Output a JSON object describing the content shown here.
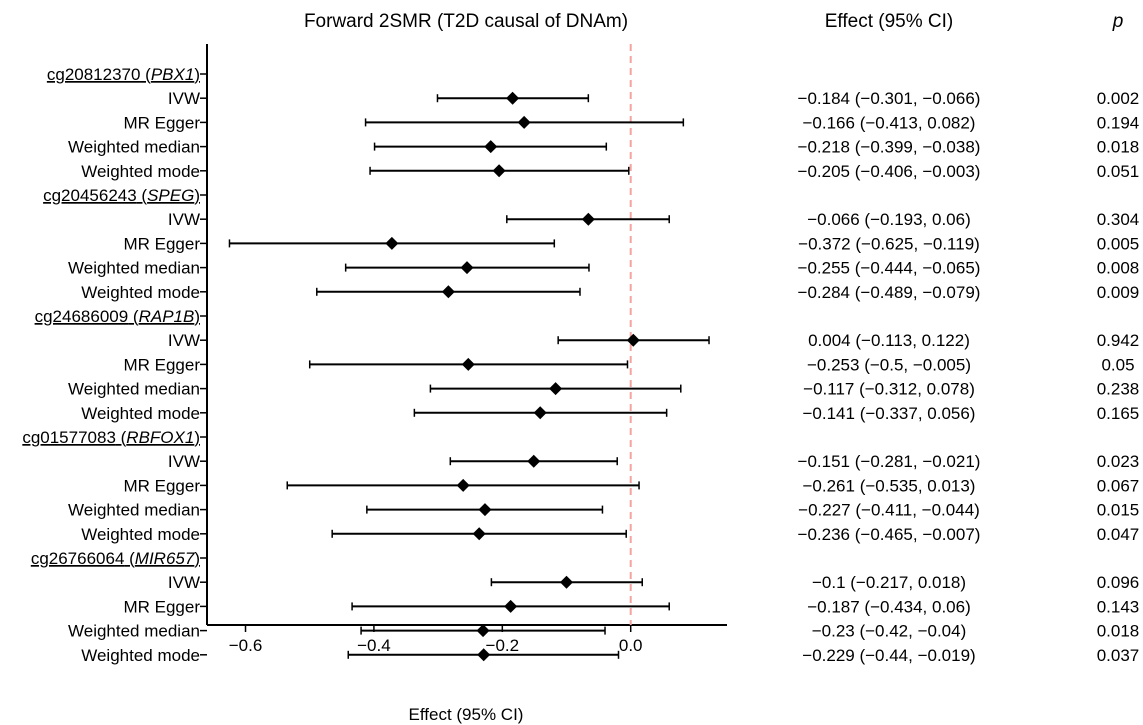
{
  "chart_data": {
    "type": "forest",
    "title": "Forward 2SMR (T2D causal of DNAm)",
    "xlabel": "Effect (95% CI)",
    "xlim": [
      -0.66,
      0.15
    ],
    "xticks": [
      -0.6,
      -0.4,
      -0.2,
      0.0
    ],
    "xtick_labels": [
      "−0.6",
      "−0.4",
      "−0.2",
      "0.0"
    ],
    "reference_line": 0.0,
    "table_headers": {
      "effect": "Effect (95% CI)",
      "p": "p"
    },
    "groups": [
      {
        "cpg": "cg20812370",
        "gene": "PBX1",
        "rows": [
          {
            "method": "IVW",
            "estimate": -0.184,
            "lower": -0.301,
            "upper": -0.066,
            "effect_text": "−0.184 (−0.301, −0.066)",
            "p": "0.002"
          },
          {
            "method": "MR Egger",
            "estimate": -0.166,
            "lower": -0.413,
            "upper": 0.082,
            "effect_text": "−0.166 (−0.413, 0.082)",
            "p": "0.194"
          },
          {
            "method": "Weighted median",
            "estimate": -0.218,
            "lower": -0.399,
            "upper": -0.038,
            "effect_text": "−0.218 (−0.399, −0.038)",
            "p": "0.018"
          },
          {
            "method": "Weighted mode",
            "estimate": -0.205,
            "lower": -0.406,
            "upper": -0.003,
            "effect_text": "−0.205 (−0.406, −0.003)",
            "p": "0.051"
          }
        ]
      },
      {
        "cpg": "cg20456243",
        "gene": "SPEG",
        "rows": [
          {
            "method": "IVW",
            "estimate": -0.066,
            "lower": -0.193,
            "upper": 0.06,
            "effect_text": "−0.066 (−0.193, 0.06)",
            "p": "0.304"
          },
          {
            "method": "MR Egger",
            "estimate": -0.372,
            "lower": -0.625,
            "upper": -0.119,
            "effect_text": "−0.372 (−0.625, −0.119)",
            "p": "0.005"
          },
          {
            "method": "Weighted median",
            "estimate": -0.255,
            "lower": -0.444,
            "upper": -0.065,
            "effect_text": "−0.255 (−0.444, −0.065)",
            "p": "0.008"
          },
          {
            "method": "Weighted mode",
            "estimate": -0.284,
            "lower": -0.489,
            "upper": -0.079,
            "effect_text": "−0.284 (−0.489, −0.079)",
            "p": "0.009"
          }
        ]
      },
      {
        "cpg": "cg24686009",
        "gene": "RAP1B",
        "rows": [
          {
            "method": "IVW",
            "estimate": 0.004,
            "lower": -0.113,
            "upper": 0.122,
            "effect_text": "0.004 (−0.113, 0.122)",
            "p": "0.942"
          },
          {
            "method": "MR Egger",
            "estimate": -0.253,
            "lower": -0.5,
            "upper": -0.005,
            "effect_text": "−0.253 (−0.5, −0.005)",
            "p": "0.05"
          },
          {
            "method": "Weighted median",
            "estimate": -0.117,
            "lower": -0.312,
            "upper": 0.078,
            "effect_text": "−0.117 (−0.312, 0.078)",
            "p": "0.238"
          },
          {
            "method": "Weighted mode",
            "estimate": -0.141,
            "lower": -0.337,
            "upper": 0.056,
            "effect_text": "−0.141 (−0.337, 0.056)",
            "p": "0.165"
          }
        ]
      },
      {
        "cpg": "cg01577083",
        "gene": "RBFOX1",
        "rows": [
          {
            "method": "IVW",
            "estimate": -0.151,
            "lower": -0.281,
            "upper": -0.021,
            "effect_text": "−0.151 (−0.281, −0.021)",
            "p": "0.023"
          },
          {
            "method": "MR Egger",
            "estimate": -0.261,
            "lower": -0.535,
            "upper": 0.013,
            "effect_text": "−0.261 (−0.535, 0.013)",
            "p": "0.067"
          },
          {
            "method": "Weighted median",
            "estimate": -0.227,
            "lower": -0.411,
            "upper": -0.044,
            "effect_text": "−0.227 (−0.411, −0.044)",
            "p": "0.015"
          },
          {
            "method": "Weighted mode",
            "estimate": -0.236,
            "lower": -0.465,
            "upper": -0.007,
            "effect_text": "−0.236 (−0.465, −0.007)",
            "p": "0.047"
          }
        ]
      },
      {
        "cpg": "cg26766064",
        "gene": "MIR657",
        "rows": [
          {
            "method": "IVW",
            "estimate": -0.1,
            "lower": -0.217,
            "upper": 0.018,
            "effect_text": "−0.1 (−0.217, 0.018)",
            "p": "0.096"
          },
          {
            "method": "MR Egger",
            "estimate": -0.187,
            "lower": -0.434,
            "upper": 0.06,
            "effect_text": "−0.187 (−0.434, 0.06)",
            "p": "0.143"
          },
          {
            "method": "Weighted median",
            "estimate": -0.23,
            "lower": -0.42,
            "upper": -0.04,
            "effect_text": "−0.23 (−0.42, −0.04)",
            "p": "0.018"
          },
          {
            "method": "Weighted mode",
            "estimate": -0.229,
            "lower": -0.44,
            "upper": -0.019,
            "effect_text": "−0.229 (−0.44, −0.019)",
            "p": "0.037"
          }
        ]
      }
    ],
    "colors": {
      "points": "#000000",
      "reference_line": "#f4a3a0"
    }
  }
}
